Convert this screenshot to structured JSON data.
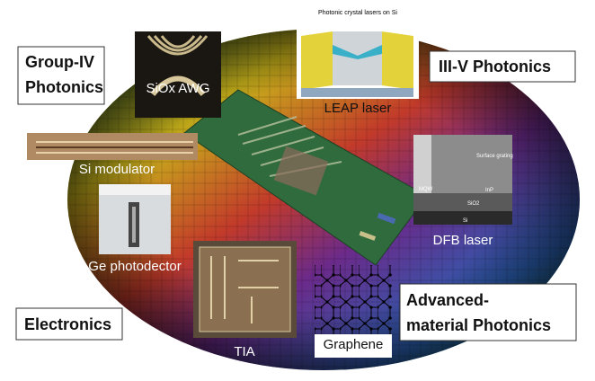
{
  "boxes": {
    "group_iv": {
      "lines": [
        "Group-IV",
        "Photonics"
      ]
    },
    "iii_v": {
      "lines": [
        "III-V Photonics"
      ]
    },
    "electronics": {
      "lines": [
        "Electronics"
      ]
    },
    "advanced": {
      "lines": [
        "Advanced-",
        "material Photonics"
      ]
    }
  },
  "insets": {
    "siox_awg": {
      "label": "SiOx AWG"
    },
    "leap_laser": {
      "label": "LEAP laser",
      "caption": "Photonic crystal lasers on Si"
    },
    "si_modulator": {
      "label": "Si modulator"
    },
    "ge_photodetector": {
      "label": "Ge photodector"
    },
    "dfb_laser": {
      "label": "DFB laser",
      "annotations": [
        "Surface grating",
        "MQW",
        "InP",
        "SiO2",
        "Si"
      ]
    },
    "tia": {
      "label": "TIA"
    },
    "graphene": {
      "label": "Graphene"
    }
  }
}
